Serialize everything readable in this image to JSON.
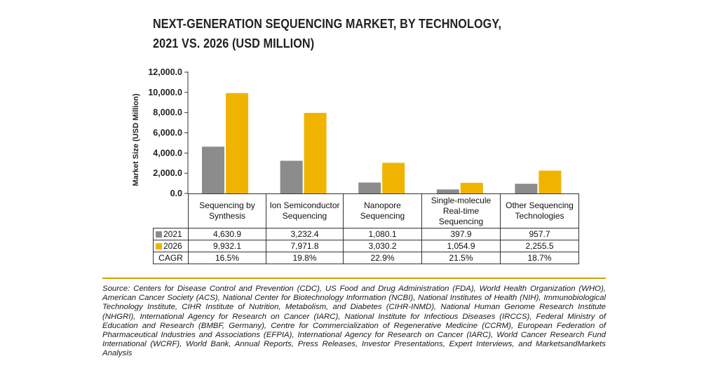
{
  "chart_data": {
    "type": "bar",
    "title_lines": [
      "NEXT-GENERATION SEQUENCING MARKET, BY TECHNOLOGY,",
      "2021 VS. 2026 (USD MILLION)"
    ],
    "ylabel": "Market Size (USD Million)",
    "xlabel": "",
    "ylim": [
      0,
      12000
    ],
    "yticks": [
      "0.0",
      "2,000.0",
      "4,000.0",
      "6,000.0",
      "8,000.0",
      "10,000.0",
      "12,000.0"
    ],
    "ytick_values": [
      0,
      2000,
      4000,
      6000,
      8000,
      10000,
      12000
    ],
    "categories": [
      "Sequencing by Synthesis",
      "Ion Semiconductor Sequencing",
      "Nanopore Sequencing",
      "Single-molecule Real-time Sequencing",
      "Other Sequencing Technologies"
    ],
    "series": [
      {
        "name": "2021",
        "color": "#8c8c8c",
        "values": [
          4630.9,
          3232.4,
          1080.1,
          397.9,
          957.7
        ],
        "labels": [
          "4,630.9",
          "3,232.4",
          "1,080.1",
          "397.9",
          "957.7"
        ]
      },
      {
        "name": "2026",
        "color": "#f0b400",
        "values": [
          9932.1,
          7971.8,
          3030.2,
          1054.9,
          2255.5
        ],
        "labels": [
          "9,932.1",
          "7,971.8",
          "3,030.2",
          "1,054.9",
          "2,255.5"
        ]
      }
    ],
    "cagr": {
      "name": "CAGR",
      "values": [
        "16.5%",
        "19.8%",
        "22.9%",
        "21.5%",
        "18.7%"
      ]
    },
    "grid": false,
    "legend": "table-rows"
  },
  "source_note": "Source: Centers for Disease Control and Prevention (CDC), US Food and Drug Administration (FDA), World Health Organization (WHO), American Cancer Society (ACS), National Center for Biotechnology Information (NCBI), National Institutes of Health (NIH), Immunobiological Technology Institute, CIHR Institute of Nutrition, Metabolism, and Diabetes (CIHR-INMD), National Human Genome Research Institute (NHGRI), International Agency for Research on Cancer (IARC), National Institute for Infectious Diseases (IRCCS), Federal Ministry of Education and Research (BMBF, Germany), Centre for Commercialization of Regenerative Medicine (CCRM), European Federation of Pharmaceutical Industries and Associations (EFPIA), International Agency for Research on Cancer (IARC), World Cancer Research Fund International (WCRF), World Bank, Annual Reports, Press Releases, Investor Presentations, Expert Interviews, and MarketsandMarkets Analysis"
}
